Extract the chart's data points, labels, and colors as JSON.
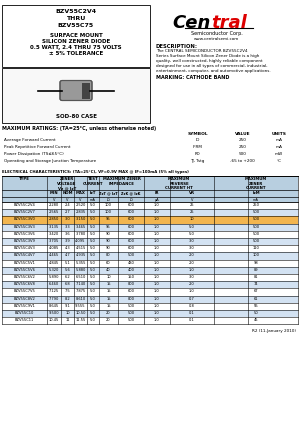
{
  "title_line1": "BZV55C2V4",
  "title_line2": "THRU",
  "title_line3": "BZV55C75",
  "title_line4": "SURFACE MOUNT",
  "title_line5": "SILICON ZENER DIODE",
  "title_line6": "0.5 WATT, 2.4 THRU 75 VOLTS",
  "title_line7": "± 5% TOLERANCE",
  "package": "SOD-80 CASE",
  "desc_title": "DESCRIPTION:",
  "desc_lines": [
    "The CENTRAL SEMICONDUCTOR BZV55C2V4",
    "Series Surface Mount Silicon Zener Diode is a high",
    "quality, well constructed, highly reliable component",
    "designed for use in all types of commercial, industrial,",
    "entertainment, computer, and automotive applications."
  ],
  "marking": "MARKING: CATHODE BAND",
  "website": "www.centralsemi.com",
  "mr_title": "MAXIMUM RATINGS: (TA=25°C, unless otherwise noted)",
  "mr_rows": [
    [
      "Average Forward Current",
      "IO",
      "250",
      "mA"
    ],
    [
      "Peak Repetitive Forward Current",
      "IFRM",
      "250",
      "mA"
    ],
    [
      "Power Dissipation (TS≤65°C)",
      "PD",
      "500",
      "mW"
    ],
    [
      "Operating and Storage Junction Temperature",
      "TJ, Tstg",
      "-65 to +200",
      "°C"
    ]
  ],
  "ec_title": "ELECTRICAL CHARACTERISTICS: (TA=25°C), VF=0.9V MAX @ IF=100mA (5% all types)",
  "table_data": [
    [
      "BZV55C2V4",
      "2.280",
      "2.4",
      "2.520",
      "5.0",
      "100",
      "600",
      "1.0",
      "25",
      "1.0",
      "250"
    ],
    [
      "BZV55C2V7",
      "2.565",
      "2.7",
      "2.835",
      "5.0",
      "100",
      "600",
      "1.0",
      "25",
      "1.0",
      "500"
    ],
    [
      "BZV55C3V0",
      "2.850",
      "3.0",
      "3.150",
      "5.0",
      "95",
      "600",
      "1.0",
      "10",
      "1.0",
      "500"
    ],
    [
      "BZV55C3V3",
      "3.135",
      "3.3",
      "3.465",
      "5.0",
      "95",
      "600",
      "1.0",
      "5.0",
      "1.0",
      "500"
    ],
    [
      "BZV55C3V6",
      "3.420",
      "3.6",
      "3.780",
      "5.0",
      "90",
      "600",
      "1.0",
      "5.0",
      "1.0",
      "500"
    ],
    [
      "BZV55C3V9",
      "3.705",
      "3.9",
      "4.095",
      "5.0",
      "90",
      "600",
      "1.0",
      "3.0",
      "1.0",
      "500"
    ],
    [
      "BZV55C4V3",
      "4.085",
      "4.3",
      "4.515",
      "5.0",
      "90",
      "600",
      "1.0",
      "3.0",
      "1.0",
      "110"
    ],
    [
      "BZV55C4V7",
      "4.465",
      "4.7",
      "4.935",
      "5.0",
      "80",
      "500",
      "1.0",
      "2.0",
      "1.0",
      "100"
    ],
    [
      "BZV55C5V1",
      "4.845",
      "5.1",
      "5.355",
      "5.0",
      "60",
      "480",
      "1.0",
      "2.0",
      "2.0",
      "98"
    ],
    [
      "BZV55C5V6",
      "5.320",
      "5.6",
      "5.880",
      "5.0",
      "40",
      "400",
      "1.0",
      "1.0",
      "2.0",
      "89"
    ],
    [
      "BZV55C6V2",
      "5.890",
      "6.2",
      "6.510",
      "5.0",
      "10",
      "150",
      "1.0",
      "3.0",
      "4.0",
      "81"
    ],
    [
      "BZV55C6V8",
      "6.460",
      "6.8",
      "7.140",
      "5.0",
      "15",
      "800",
      "1.0",
      "2.0",
      "4.0",
      "74"
    ],
    [
      "BZV55C7V5",
      "7.125",
      "7.5",
      "7.875",
      "5.0",
      "15",
      "600",
      "1.0",
      "1.0",
      "5.0",
      "67"
    ],
    [
      "BZV55C8V2",
      "7.790",
      "8.2",
      "8.610",
      "5.0",
      "15",
      "800",
      "1.0",
      "0.7",
      "5.0",
      "61"
    ],
    [
      "BZV55C9V1",
      "8.645",
      "9.1",
      "9.555",
      "5.0",
      "15",
      "500",
      "1.0",
      "0.8",
      "6.0",
      "55"
    ],
    [
      "BZV55C10",
      "9.500",
      "10",
      "10.50",
      "5.0",
      "20",
      "500",
      "1.0",
      "0.1",
      "7.0",
      "50"
    ],
    [
      "BZV55C11",
      "10.45",
      "11",
      "11.55",
      "5.0",
      "20",
      "500",
      "1.0",
      "0.1",
      "8.0",
      "45"
    ]
  ],
  "highlight_row": 2,
  "highlight_color": "#f0a830",
  "alt_row_color": "#ccddf0",
  "header_bg": "#b8cfe0",
  "footer": "R2 (11-January 2010)"
}
